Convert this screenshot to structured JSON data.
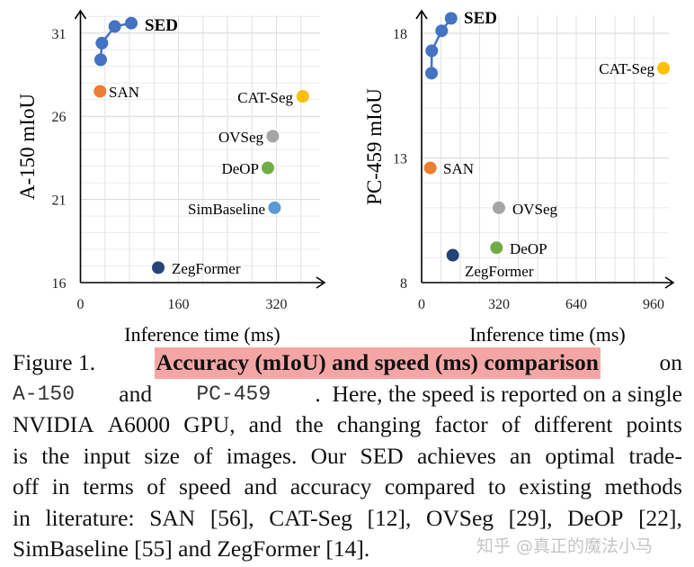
{
  "chart_data": [
    {
      "type": "scatter",
      "ylabel": "A-150 mIoU",
      "xlabel": "Inference time (ms)",
      "xlim": [
        0,
        400
      ],
      "ylim": [
        16,
        32.5
      ],
      "xticks": [
        "0",
        "160",
        "320"
      ],
      "yticks": [
        "16",
        "21",
        "26",
        "31"
      ],
      "grid": true,
      "colors": {
        "SED": "#4472c4",
        "SAN": "#ed7d31",
        "CAT-Seg": "#ffc000",
        "OVSeg": "#a5a5a5",
        "DeOP": "#70ad47",
        "SimBaseline": "#5b9bd5",
        "ZegFormer": "#264478"
      },
      "series": [
        {
          "name": "SED",
          "line": true,
          "x": [
            33,
            35,
            56,
            83
          ],
          "y": [
            29.4,
            30.4,
            31.4,
            31.6
          ]
        },
        {
          "name": "SAN",
          "x": [
            32
          ],
          "y": [
            27.5
          ]
        },
        {
          "name": "CAT-Seg",
          "x": [
            363
          ],
          "y": [
            27.2
          ]
        },
        {
          "name": "OVSeg",
          "x": [
            314
          ],
          "y": [
            24.8
          ]
        },
        {
          "name": "DeOP",
          "x": [
            306
          ],
          "y": [
            22.9
          ]
        },
        {
          "name": "SimBaseline",
          "x": [
            317
          ],
          "y": [
            20.5
          ]
        },
        {
          "name": "ZegFormer",
          "x": [
            127
          ],
          "y": [
            16.9
          ]
        }
      ]
    },
    {
      "type": "scatter",
      "ylabel": "PC-459 mIoU",
      "xlabel": "Inference time (ms)",
      "xlim": [
        0,
        1050
      ],
      "ylim": [
        8,
        19.2
      ],
      "xticks": [
        "0",
        "320",
        "640",
        "960"
      ],
      "yticks": [
        "8",
        "13",
        "18"
      ],
      "grid": true,
      "colors": {
        "SED": "#4472c4",
        "SAN": "#ed7d31",
        "CAT-Seg": "#ffc000",
        "OVSeg": "#a5a5a5",
        "DeOP": "#70ad47",
        "ZegFormer": "#264478"
      },
      "series": [
        {
          "name": "SED",
          "line": true,
          "x": [
            41,
            42,
            83,
            122
          ],
          "y": [
            16.4,
            17.3,
            18.1,
            18.6
          ]
        },
        {
          "name": "CAT-Seg",
          "x": [
            1001
          ],
          "y": [
            16.6
          ]
        },
        {
          "name": "SAN",
          "x": [
            36
          ],
          "y": [
            12.6
          ]
        },
        {
          "name": "OVSeg",
          "x": [
            320
          ],
          "y": [
            11.0
          ]
        },
        {
          "name": "DeOP",
          "x": [
            310
          ],
          "y": [
            9.4
          ]
        },
        {
          "name": "ZegFormer",
          "x": [
            129
          ],
          "y": [
            9.1
          ]
        }
      ]
    }
  ],
  "caption": {
    "lines": [
      [
        {
          "t": "Figure 1.",
          "s": ""
        },
        {
          "t": "Accuracy (mIoU) and speed (ms) comparison",
          "s": "hl"
        },
        {
          "t": "on",
          "s": ""
        }
      ],
      [
        {
          "t": "A-150",
          "s": "mono"
        },
        {
          "t": "and",
          "s": ""
        },
        {
          "t": "PC-459",
          "s": "mono"
        },
        {
          "t": ".  Here, the speed is reported on a single",
          "s": ""
        }
      ],
      [
        {
          "t": "NVIDIA A6000 GPU, and the changing factor of different points",
          "s": ""
        }
      ],
      [
        {
          "t": "is the input size of images.  Our SED achieves an optimal trade-",
          "s": ""
        }
      ],
      [
        {
          "t": "off in terms of speed and accuracy compared to existing methods",
          "s": ""
        }
      ],
      [
        {
          "t": "in literature: SAN [56], CAT-Seg [12], OVSeg [29], DeOP [22],",
          "s": ""
        }
      ],
      [
        {
          "t": "SimBaseline [55] and ZegFormer [14].",
          "s": ""
        }
      ]
    ]
  },
  "watermark": "知乎 @真正的魔法小马"
}
